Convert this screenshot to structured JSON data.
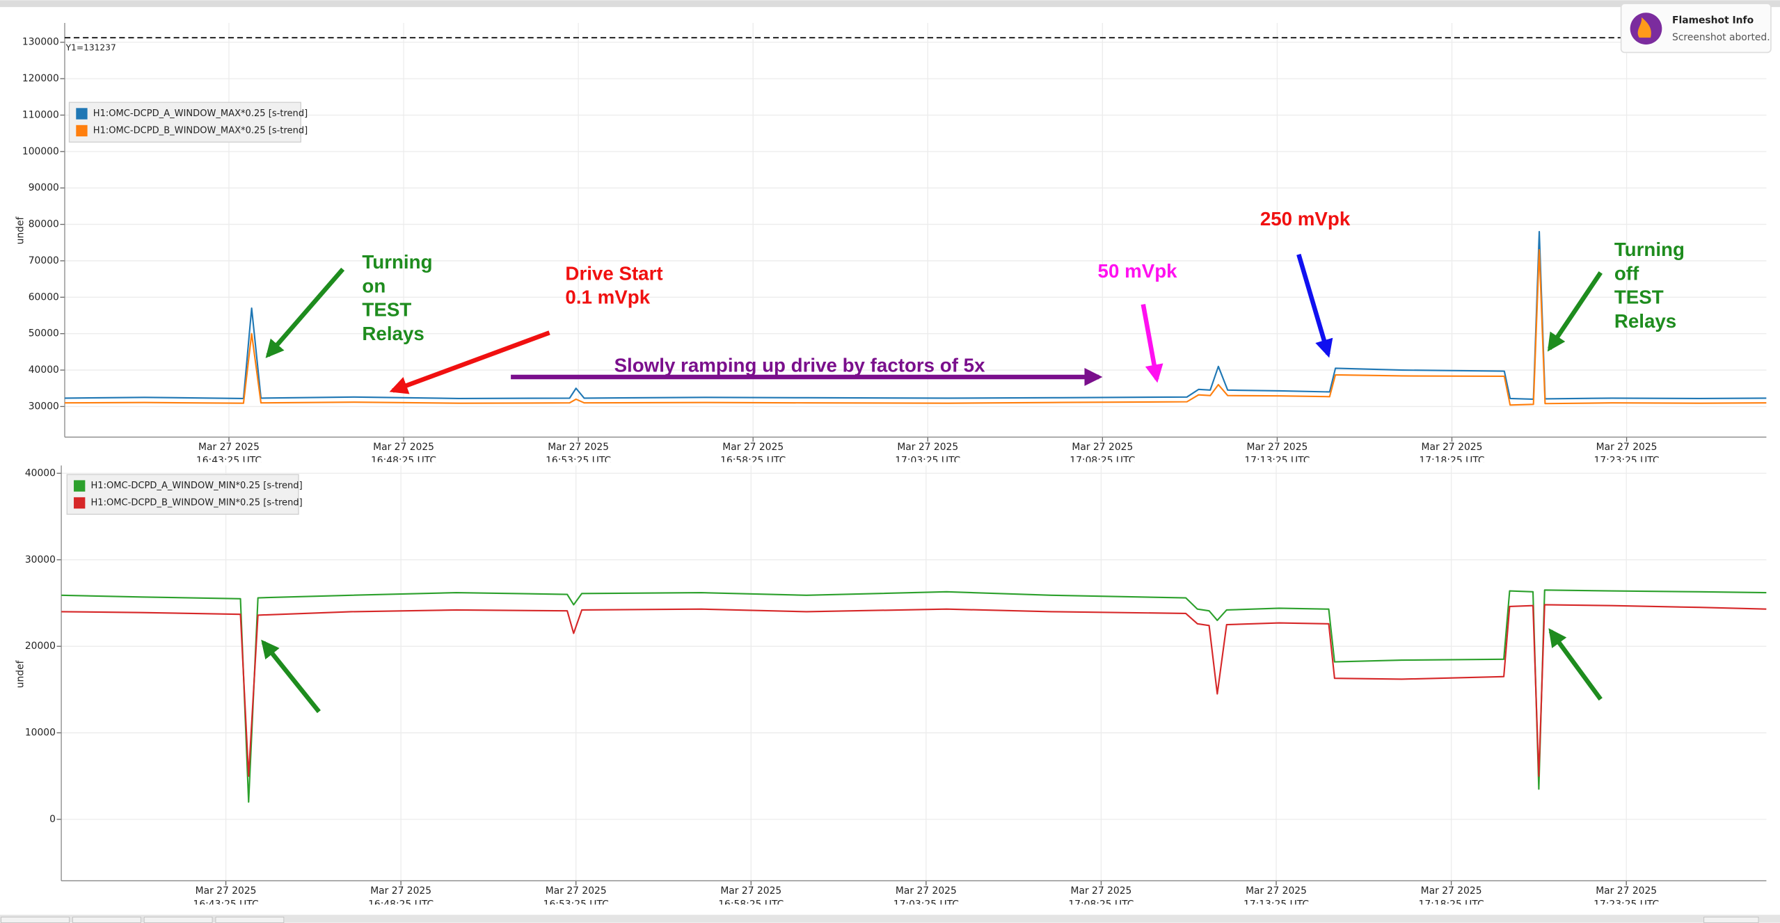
{
  "chart_data": [
    {
      "type": "line",
      "ylabel": "undef",
      "x": [
        "2025-03-27 16:38:43",
        "2025-03-27 16:41:00",
        "2025-03-27 16:43:50",
        "2025-03-27 16:44:04",
        "2025-03-27 16:44:20",
        "2025-03-27 16:47:00",
        "2025-03-27 16:50:00",
        "2025-03-27 16:53:10",
        "2025-03-27 16:53:21",
        "2025-03-27 16:53:35",
        "2025-03-27 16:57:00",
        "2025-03-27 17:00:00",
        "2025-03-27 17:04:00",
        "2025-03-27 17:07:00",
        "2025-03-27 17:10:50",
        "2025-03-27 17:11:10",
        "2025-03-27 17:11:30",
        "2025-03-27 17:11:44",
        "2025-03-27 17:12:00",
        "2025-03-27 17:13:30",
        "2025-03-27 17:14:55",
        "2025-03-27 17:15:05",
        "2025-03-27 17:17:00",
        "2025-03-27 17:19:55",
        "2025-03-27 17:20:05",
        "2025-03-27 17:20:45",
        "2025-03-27 17:20:55",
        "2025-03-27 17:21:05",
        "2025-03-27 17:23:00",
        "2025-03-27 17:25:30",
        "2025-03-27 17:27:25"
      ],
      "series": [
        {
          "name": "H1:OMC-DCPD_A_WINDOW_MAX*0.25 [s-trend]",
          "color": "#1f77b4",
          "values": [
            32300,
            32500,
            32200,
            57000,
            32300,
            32600,
            32200,
            32300,
            35000,
            32300,
            32500,
            32400,
            32300,
            32400,
            32600,
            34700,
            34500,
            41000,
            34500,
            34300,
            34000,
            40500,
            40000,
            39700,
            32200,
            32000,
            78000,
            32100,
            32300,
            32200,
            32300
          ]
        },
        {
          "name": "H1:OMC-DCPD_B_WINDOW_MAX*0.25 [s-trend]",
          "color": "#ff7f0e",
          "values": [
            31000,
            31100,
            30900,
            50000,
            31000,
            31200,
            30900,
            31000,
            32000,
            31000,
            31100,
            31000,
            30900,
            31100,
            31300,
            33200,
            33000,
            36000,
            33000,
            32900,
            32700,
            38700,
            38400,
            38300,
            30400,
            30600,
            73000,
            30800,
            31000,
            30900,
            31000
          ]
        }
      ],
      "xlim": [
        "2025-03-27 16:38:43",
        "2025-03-27 17:27:25"
      ],
      "xticks": [
        {
          "value": "2025-03-27 16:43:25",
          "label": [
            "Mar 27 2025",
            "16:43:25 UTC"
          ]
        },
        {
          "value": "2025-03-27 16:48:25",
          "label": [
            "Mar 27 2025",
            "16:48:25 UTC"
          ]
        },
        {
          "value": "2025-03-27 16:53:25",
          "label": [
            "Mar 27 2025",
            "16:53:25 UTC"
          ]
        },
        {
          "value": "2025-03-27 16:58:25",
          "label": [
            "Mar 27 2025",
            "16:58:25 UTC"
          ]
        },
        {
          "value": "2025-03-27 17:03:25",
          "label": [
            "Mar 27 2025",
            "17:03:25 UTC"
          ]
        },
        {
          "value": "2025-03-27 17:08:25",
          "label": [
            "Mar 27 2025",
            "17:08:25 UTC"
          ]
        },
        {
          "value": "2025-03-27 17:13:25",
          "label": [
            "Mar 27 2025",
            "17:13:25 UTC"
          ]
        },
        {
          "value": "2025-03-27 17:18:25",
          "label": [
            "Mar 27 2025",
            "17:18:25 UTC"
          ]
        },
        {
          "value": "2025-03-27 17:23:25",
          "label": [
            "Mar 27 2025",
            "17:23:25 UTC"
          ]
        }
      ],
      "ylim": [
        21600,
        135300
      ],
      "yticks": [
        30000,
        40000,
        50000,
        60000,
        70000,
        80000,
        90000,
        100000,
        110000,
        120000,
        130000
      ],
      "grid": true,
      "legend": "upper left",
      "cursor": {
        "value": 131237,
        "label": "Y1=131237"
      },
      "annotations": [
        {
          "text": [
            "Turning",
            "on",
            "TEST",
            "Relays"
          ],
          "color": "#1e8c1e"
        },
        {
          "text": [
            "Drive Start",
            "0.1 mVpk"
          ],
          "color": "#f01010"
        },
        {
          "text": [
            "Slowly ramping up drive by factors of 5x"
          ],
          "color": "#7a0f8c"
        },
        {
          "text": [
            "50 mVpk"
          ],
          "color": "#ff10f0"
        },
        {
          "text": [
            "250 mVpk"
          ],
          "color": "#f01010"
        },
        {
          "text": [
            "Turning",
            "off",
            "TEST",
            "Relays"
          ],
          "color": "#1e8c1e"
        }
      ]
    },
    {
      "type": "line",
      "ylabel": "undef",
      "x": [
        "2025-03-27 16:38:43",
        "2025-03-27 16:41:00",
        "2025-03-27 16:43:50",
        "2025-03-27 16:44:04",
        "2025-03-27 16:44:20",
        "2025-03-27 16:47:00",
        "2025-03-27 16:50:00",
        "2025-03-27 16:53:10",
        "2025-03-27 16:53:21",
        "2025-03-27 16:53:35",
        "2025-03-27 16:57:00",
        "2025-03-27 17:00:00",
        "2025-03-27 17:04:00",
        "2025-03-27 17:07:00",
        "2025-03-27 17:10:50",
        "2025-03-27 17:11:10",
        "2025-03-27 17:11:30",
        "2025-03-27 17:11:44",
        "2025-03-27 17:12:00",
        "2025-03-27 17:13:30",
        "2025-03-27 17:14:55",
        "2025-03-27 17:15:05",
        "2025-03-27 17:17:00",
        "2025-03-27 17:19:55",
        "2025-03-27 17:20:05",
        "2025-03-27 17:20:45",
        "2025-03-27 17:20:55",
        "2025-03-27 17:21:05",
        "2025-03-27 17:23:00",
        "2025-03-27 17:25:30",
        "2025-03-27 17:27:25"
      ],
      "series": [
        {
          "name": "H1:OMC-DCPD_A_WINDOW_MIN*0.25 [s-trend]",
          "color": "#2ca02c",
          "values": [
            25900,
            25700,
            25500,
            2000,
            25600,
            25900,
            26200,
            26000,
            24800,
            26100,
            26200,
            25900,
            26300,
            25900,
            25600,
            24300,
            24100,
            23000,
            24200,
            24400,
            24300,
            18200,
            18400,
            18500,
            26400,
            26300,
            3500,
            26500,
            26400,
            26300,
            26200
          ]
        },
        {
          "name": "H1:OMC-DCPD_B_WINDOW_MIN*0.25 [s-trend]",
          "color": "#d62728",
          "values": [
            24000,
            23900,
            23700,
            5000,
            23600,
            24000,
            24200,
            24100,
            21500,
            24200,
            24300,
            24000,
            24300,
            24000,
            23800,
            22600,
            22400,
            14500,
            22500,
            22700,
            22600,
            16300,
            16200,
            16500,
            24600,
            24700,
            5000,
            24800,
            24700,
            24500,
            24300
          ]
        }
      ],
      "xlim": [
        "2025-03-27 16:38:43",
        "2025-03-27 17:27:25"
      ],
      "xticks": [
        {
          "value": "2025-03-27 16:43:25",
          "label": [
            "Mar 27 2025",
            "16:43:25 UTC"
          ]
        },
        {
          "value": "2025-03-27 16:48:25",
          "label": [
            "Mar 27 2025",
            "16:48:25 UTC"
          ]
        },
        {
          "value": "2025-03-27 16:53:25",
          "label": [
            "Mar 27 2025",
            "16:53:25 UTC"
          ]
        },
        {
          "value": "2025-03-27 16:58:25",
          "label": [
            "Mar 27 2025",
            "16:58:25 UTC"
          ]
        },
        {
          "value": "2025-03-27 17:03:25",
          "label": [
            "Mar 27 2025",
            "17:03:25 UTC"
          ]
        },
        {
          "value": "2025-03-27 17:08:25",
          "label": [
            "Mar 27 2025",
            "17:08:25 UTC"
          ]
        },
        {
          "value": "2025-03-27 17:13:25",
          "label": [
            "Mar 27 2025",
            "17:13:25 UTC"
          ]
        },
        {
          "value": "2025-03-27 17:18:25",
          "label": [
            "Mar 27 2025",
            "17:18:25 UTC"
          ]
        },
        {
          "value": "2025-03-27 17:23:25",
          "label": [
            "Mar 27 2025",
            "17:23:25 UTC"
          ]
        }
      ],
      "ylim": [
        -7100,
        40900
      ],
      "yticks": [
        0,
        10000,
        20000,
        30000,
        40000
      ],
      "grid": true,
      "legend": "upper left"
    }
  ],
  "notification": {
    "title": "Flameshot Info",
    "message": "Screenshot aborted."
  }
}
